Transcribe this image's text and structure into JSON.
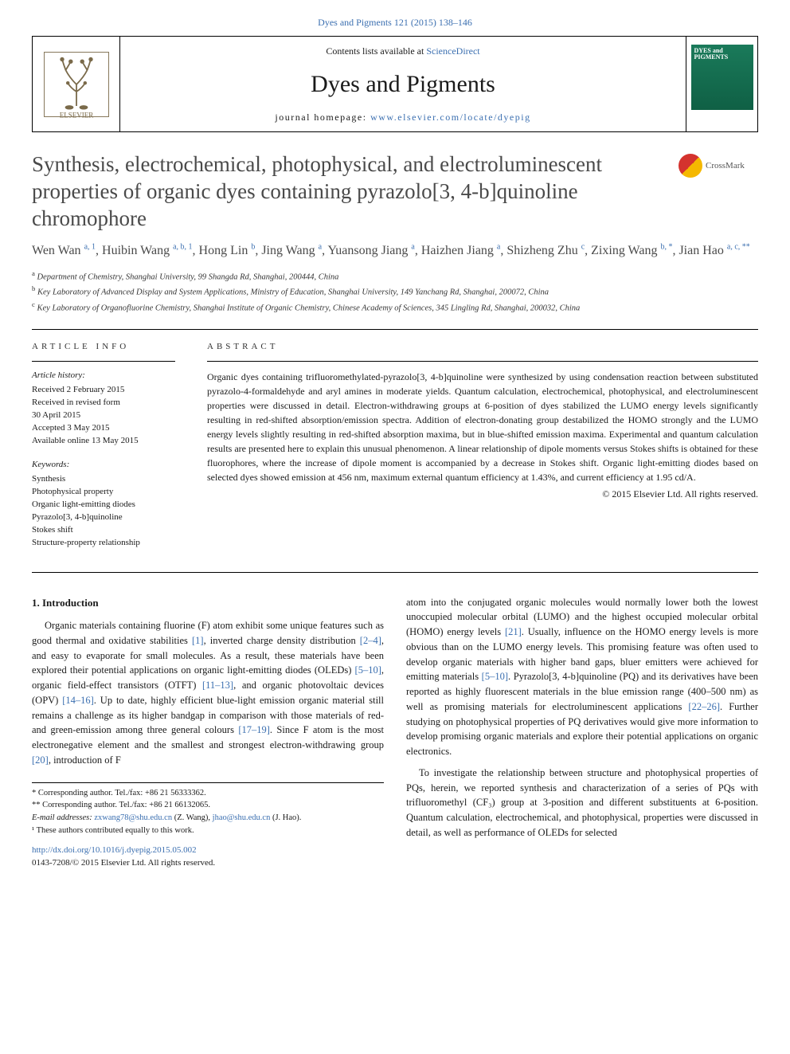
{
  "top_link": {
    "text": "Dyes and Pigments 121 (2015) 138–146",
    "href": "#"
  },
  "header": {
    "contents_prefix": "Contents lists available at ",
    "contents_link": "ScienceDirect",
    "journal_name": "Dyes and Pigments",
    "homepage_prefix": "journal homepage: ",
    "homepage_link": "www.elsevier.com/locate/dyepig",
    "cover_label": "DYES\nand\nPIGMENTS"
  },
  "crossmark_label": "CrossMark",
  "title": "Synthesis, electrochemical, photophysical, and electroluminescent properties of organic dyes containing pyrazolo[3, 4-b]quinoline chromophore",
  "authors_html": "Wen Wan <sup>a, 1</sup>, Huibin Wang <sup>a, b, 1</sup>, Hong Lin <sup>b</sup>, Jing Wang <sup>a</sup>, Yuansong Jiang <sup>a</sup>, Haizhen Jiang <sup>a</sup>, Shizheng Zhu <sup>c</sup>, Zixing Wang <sup>b, *</sup>, Jian Hao <sup>a, c, **</sup>",
  "affiliations": [
    {
      "sup": "a",
      "text": "Department of Chemistry, Shanghai University, 99 Shangda Rd, Shanghai, 200444, China"
    },
    {
      "sup": "b",
      "text": "Key Laboratory of Advanced Display and System Applications, Ministry of Education, Shanghai University, 149 Yanchang Rd, Shanghai, 200072, China"
    },
    {
      "sup": "c",
      "text": "Key Laboratory of Organofluorine Chemistry, Shanghai Institute of Organic Chemistry, Chinese Academy of Sciences, 345 Lingling Rd, Shanghai, 200032, China"
    }
  ],
  "article_info": {
    "heading": "ARTICLE INFO",
    "history_label": "Article history:",
    "history": [
      "Received 2 February 2015",
      "Received in revised form",
      "30 April 2015",
      "Accepted 3 May 2015",
      "Available online 13 May 2015"
    ],
    "keywords_label": "Keywords:",
    "keywords": [
      "Synthesis",
      "Photophysical property",
      "Organic light-emitting diodes",
      "Pyrazolo[3, 4-b]quinoline",
      "Stokes shift",
      "Structure-property relationship"
    ]
  },
  "abstract": {
    "heading": "ABSTRACT",
    "text": "Organic dyes containing trifluoromethylated-pyrazolo[3, 4-b]quinoline were synthesized by using condensation reaction between substituted pyrazolo-4-formaldehyde and aryl amines in moderate yields. Quantum calculation, electrochemical, photophysical, and electroluminescent properties were discussed in detail. Electron-withdrawing groups at 6-position of dyes stabilized the LUMO energy levels significantly resulting in red-shifted absorption/emission spectra. Addition of electron-donating group destabilized the HOMO strongly and the LUMO energy levels slightly resulting in red-shifted absorption maxima, but in blue-shifted emission maxima. Experimental and quantum calculation results are presented here to explain this unusual phenomenon. A linear relationship of dipole moments versus Stokes shifts is obtained for these fluorophores, where the increase of dipole moment is accompanied by a decrease in Stokes shift. Organic light-emitting diodes based on selected dyes showed emission at 456 nm, maximum external quantum efficiency at 1.43%, and current efficiency at 1.95 cd/A.",
    "copyright": "© 2015 Elsevier Ltd. All rights reserved."
  },
  "body": {
    "intro_heading": "1. Introduction",
    "col1_p1_pre": "Organic materials containing fluorine (F) atom exhibit some unique features such as good thermal and oxidative stabilities ",
    "col1_p1_ref1": "[1]",
    "col1_p1_mid1": ", inverted charge density distribution ",
    "col1_p1_ref2": "[2–4]",
    "col1_p1_mid2": ", and easy to evaporate for small molecules. As a result, these materials have been explored their potential applications on organic light-emitting diodes (OLEDs) ",
    "col1_p1_ref3": "[5–10]",
    "col1_p1_mid3": ", organic field-effect transistors (OTFT) ",
    "col1_p1_ref4": "[11–13]",
    "col1_p1_mid4": ", and organic photovoltaic devices (OPV) ",
    "col1_p1_ref5": "[14–16]",
    "col1_p1_mid5": ". Up to date, highly efficient blue-light emission organic material still remains a challenge as its higher bandgap in comparison with those materials of red- and green-emission among three general colours ",
    "col1_p1_ref6": "[17–19]",
    "col1_p1_mid6": ". Since F atom is the most electronegative element and the smallest and strongest electron-withdrawing group ",
    "col1_p1_ref7": "[20]",
    "col1_p1_post": ", introduction of F",
    "col2_p1_pre": "atom into the conjugated organic molecules would normally lower both the lowest unoccupied molecular orbital (LUMO) and the highest occupied molecular orbital (HOMO) energy levels ",
    "col2_p1_ref1": "[21]",
    "col2_p1_mid1": ". Usually, influence on the HOMO energy levels is more obvious than on the LUMO energy levels. This promising feature was often used to develop organic materials with higher band gaps, bluer emitters were achieved for emitting materials ",
    "col2_p1_ref2": "[5–10]",
    "col2_p1_mid2": ". Pyrazolo[3, 4-b]quinoline (PQ) and its derivatives have been reported as highly fluorescent materials in the blue emission range (400–500 nm) as well as promising materials for electroluminescent applications ",
    "col2_p1_ref3": "[22–26]",
    "col2_p1_post": ". Further studying on photophysical properties of PQ derivatives would give more information to develop promising organic materials and explore their potential applications on organic electronics.",
    "col2_p2": "To investigate the relationship between structure and photophysical properties of PQs, herein, we reported synthesis and characterization of a series of PQs with trifluoromethyl (CF₃) group at 3-position and different substituents at 6-position. Quantum calculation, electrochemical, and photophysical, properties were discussed in detail, as well as performance of OLEDs for selected"
  },
  "footnotes": {
    "corr1": "* Corresponding author. Tel./fax: +86 21 56333362.",
    "corr2": "** Corresponding author. Tel./fax: +86 21 66132065.",
    "email_label": "E-mail addresses: ",
    "email1": "zxwang78@shu.edu.cn",
    "email1_name": " (Z. Wang), ",
    "email2": "jhao@shu.edu.cn",
    "email2_name": " (J. Hao).",
    "contrib": "¹ These authors contributed equally to this work."
  },
  "doi": {
    "link": "http://dx.doi.org/10.1016/j.dyepig.2015.05.002",
    "issn_line": "0143-7208/© 2015 Elsevier Ltd. All rights reserved."
  },
  "colors": {
    "link": "#3b6fb0",
    "title_gray": "#4a4a4a",
    "cover_green_top": "#1a7a5a",
    "cover_green_bot": "#0d5a40"
  }
}
